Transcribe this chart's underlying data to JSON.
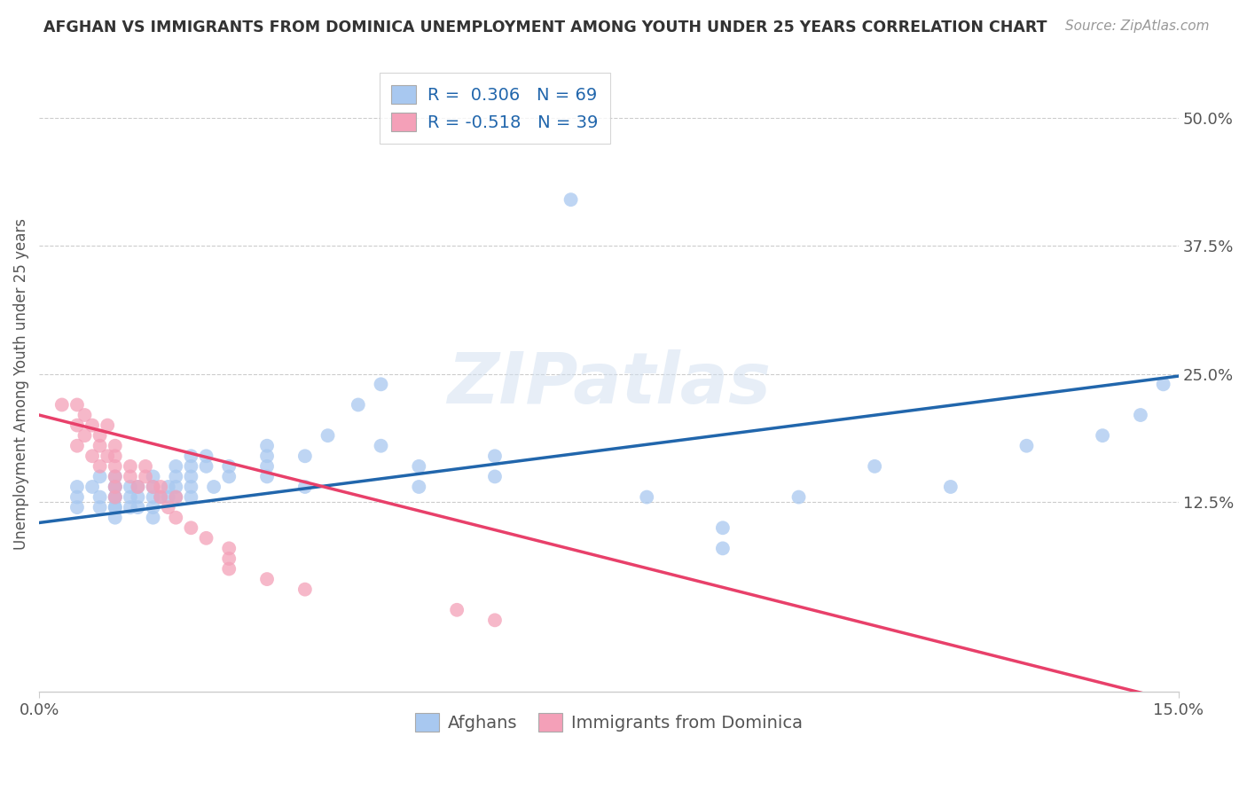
{
  "title": "AFGHAN VS IMMIGRANTS FROM DOMINICA UNEMPLOYMENT AMONG YOUTH UNDER 25 YEARS CORRELATION CHART",
  "source": "Source: ZipAtlas.com",
  "ylabel": "Unemployment Among Youth under 25 years",
  "xlim": [
    0.0,
    0.15
  ],
  "ylim": [
    -0.06,
    0.54
  ],
  "ytick_labels_right": [
    "12.5%",
    "25.0%",
    "37.5%",
    "50.0%"
  ],
  "ytick_vals_right": [
    0.125,
    0.25,
    0.375,
    0.5
  ],
  "label1": "Afghans",
  "label2": "Immigrants from Dominica",
  "scatter_color1": "#A8C8F0",
  "scatter_color2": "#F4A0B8",
  "line_color1": "#2166AC",
  "line_color2": "#E8406A",
  "background_color": "#FFFFFF",
  "grid_color": "#CCCCCC",
  "title_color": "#333333",
  "axis_label_color": "#555555",
  "legend_color": "#2166AC",
  "afghans_x": [
    0.005,
    0.005,
    0.005,
    0.007,
    0.008,
    0.008,
    0.008,
    0.01,
    0.01,
    0.01,
    0.01,
    0.01,
    0.01,
    0.01,
    0.01,
    0.012,
    0.012,
    0.012,
    0.013,
    0.013,
    0.013,
    0.015,
    0.015,
    0.015,
    0.015,
    0.015,
    0.016,
    0.017,
    0.017,
    0.018,
    0.018,
    0.018,
    0.018,
    0.02,
    0.02,
    0.02,
    0.02,
    0.02,
    0.022,
    0.022,
    0.023,
    0.025,
    0.025,
    0.03,
    0.03,
    0.03,
    0.03,
    0.035,
    0.035,
    0.038,
    0.042,
    0.045,
    0.045,
    0.05,
    0.05,
    0.06,
    0.06,
    0.07,
    0.08,
    0.09,
    0.09,
    0.1,
    0.11,
    0.12,
    0.13,
    0.14,
    0.145,
    0.148
  ],
  "afghans_y": [
    0.13,
    0.12,
    0.14,
    0.14,
    0.13,
    0.12,
    0.15,
    0.12,
    0.13,
    0.14,
    0.15,
    0.12,
    0.11,
    0.13,
    0.14,
    0.12,
    0.13,
    0.14,
    0.13,
    0.14,
    0.12,
    0.13,
    0.14,
    0.15,
    0.12,
    0.11,
    0.13,
    0.14,
    0.13,
    0.15,
    0.14,
    0.16,
    0.13,
    0.14,
    0.15,
    0.16,
    0.17,
    0.13,
    0.16,
    0.17,
    0.14,
    0.15,
    0.16,
    0.16,
    0.17,
    0.15,
    0.18,
    0.17,
    0.14,
    0.19,
    0.22,
    0.24,
    0.18,
    0.14,
    0.16,
    0.15,
    0.17,
    0.42,
    0.13,
    0.1,
    0.08,
    0.13,
    0.16,
    0.14,
    0.18,
    0.19,
    0.21,
    0.24
  ],
  "dominica_x": [
    0.003,
    0.005,
    0.005,
    0.005,
    0.006,
    0.006,
    0.007,
    0.007,
    0.008,
    0.008,
    0.008,
    0.009,
    0.009,
    0.01,
    0.01,
    0.01,
    0.01,
    0.01,
    0.01,
    0.012,
    0.012,
    0.013,
    0.014,
    0.014,
    0.015,
    0.016,
    0.016,
    0.017,
    0.018,
    0.018,
    0.02,
    0.022,
    0.025,
    0.025,
    0.025,
    0.03,
    0.035,
    0.055,
    0.06
  ],
  "dominica_y": [
    0.22,
    0.2,
    0.18,
    0.22,
    0.19,
    0.21,
    0.17,
    0.2,
    0.18,
    0.19,
    0.16,
    0.2,
    0.17,
    0.17,
    0.16,
    0.15,
    0.18,
    0.14,
    0.13,
    0.16,
    0.15,
    0.14,
    0.16,
    0.15,
    0.14,
    0.14,
    0.13,
    0.12,
    0.13,
    0.11,
    0.1,
    0.09,
    0.08,
    0.07,
    0.06,
    0.05,
    0.04,
    0.02,
    0.01
  ],
  "line1_x0": 0.0,
  "line1_y0": 0.105,
  "line1_x1": 0.15,
  "line1_y1": 0.248,
  "line2_x0": 0.0,
  "line2_y0": 0.21,
  "line2_x1": 0.15,
  "line2_y1": -0.07
}
